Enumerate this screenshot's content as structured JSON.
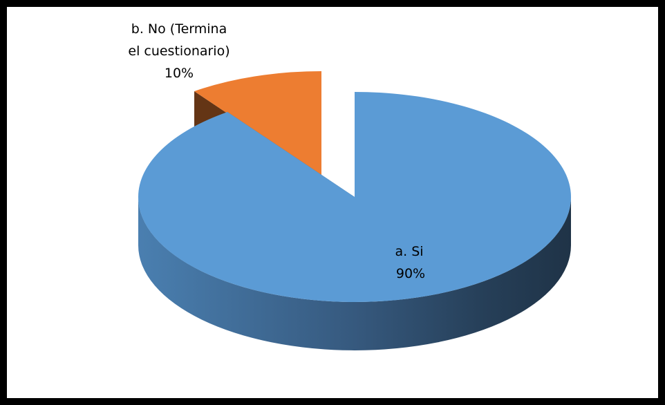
{
  "chart_data": {
    "type": "pie",
    "style": "3d-exploded",
    "title": "",
    "grid": false,
    "legend": "none",
    "slices": [
      {
        "label_lines": [
          "a. Si"
        ],
        "percent_label": "90%",
        "value": 90,
        "color": "#5b9bd5"
      },
      {
        "label_lines": [
          "b. No (Termina",
          "el cuestionario)"
        ],
        "percent_label": "10%",
        "value": 10,
        "color": "#ed7d31"
      }
    ]
  },
  "frame": {
    "border_color": "#000000",
    "background": "#ffffff"
  }
}
